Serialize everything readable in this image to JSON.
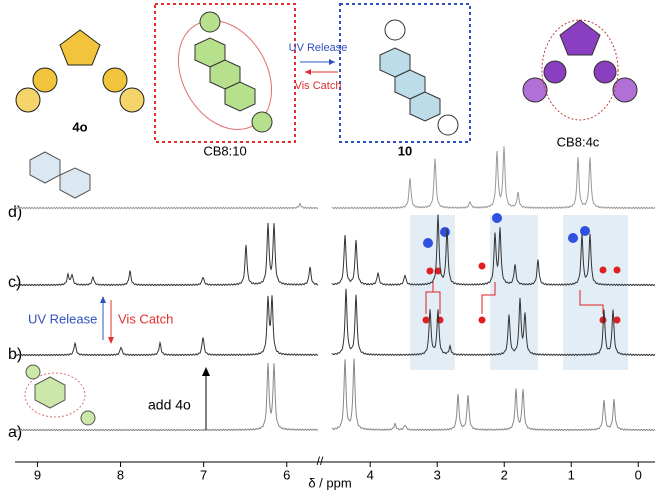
{
  "figure": {
    "structures": {
      "left": "4o",
      "box1": "CB8:10",
      "box2": "10",
      "right": "CB8:4c"
    },
    "arrows": {
      "forward": "UV Release",
      "backward": "Vis Catch"
    },
    "traces": {
      "a": "a)",
      "b": "b)",
      "c": "c)",
      "d": "d)"
    },
    "annotations": {
      "add": "add 4o",
      "uv": "UV Release",
      "vis": "Vis Catch"
    },
    "axis": {
      "label": "δ / ppm",
      "segments": [
        {
          "lim": [
            9.27,
            5.6
          ],
          "ticks": [
            9,
            8,
            7,
            6
          ]
        },
        {
          "lim": [
            4.6,
            -0.25
          ],
          "ticks": [
            4,
            3,
            2,
            1,
            0
          ]
        }
      ]
    }
  }
}
